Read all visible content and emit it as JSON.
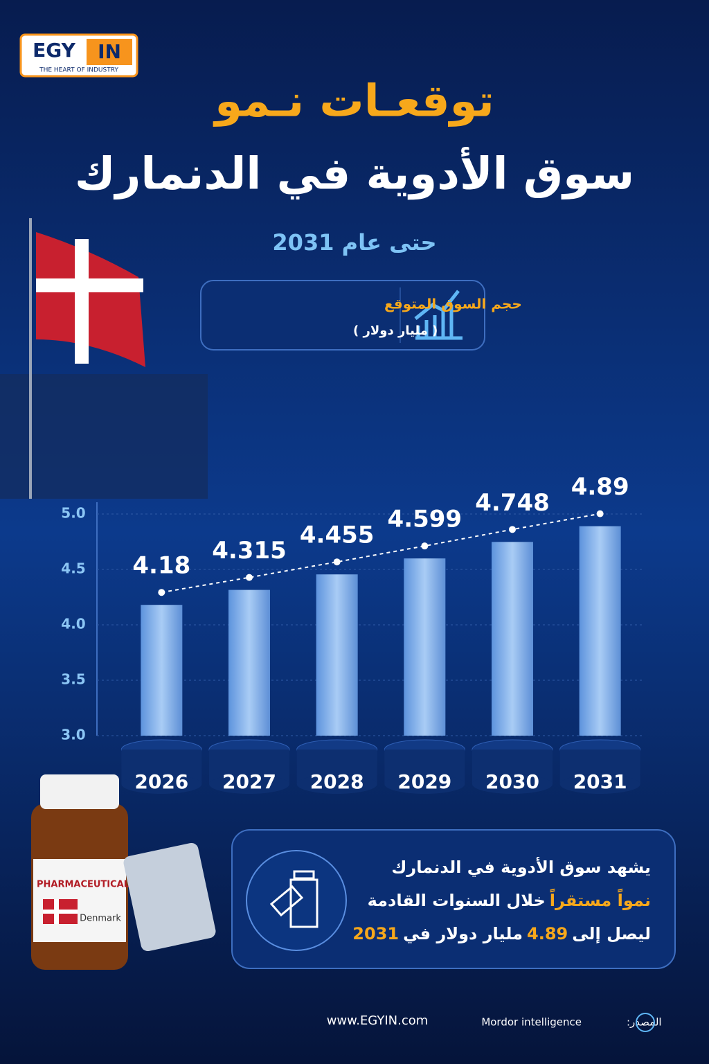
{
  "logo": {
    "left": "EGY",
    "right": "IN",
    "tagline": "THE HEART OF INDUSTRY"
  },
  "header": {
    "title_line1": "توقعـات نـمو",
    "title_line2": "سوق الأدوية في الدنمارك",
    "subtitle": "حتى عام 2031"
  },
  "legend_box": {
    "title": "حجم السوق المتوقع",
    "unit": "( مليار دولار )"
  },
  "chart_data": {
    "type": "bar",
    "categories": [
      "2026",
      "2027",
      "2028",
      "2029",
      "2030",
      "2031"
    ],
    "values": [
      4.18,
      4.315,
      4.455,
      4.599,
      4.748,
      4.89
    ],
    "color": "#7fb2ef",
    "ylim": [
      3.0,
      5.0
    ],
    "yticks": [
      {
        "value": 3.0,
        "label": "3.0"
      },
      {
        "value": 3.5,
        "label": "3.5"
      },
      {
        "value": 4.0,
        "label": "4.0"
      },
      {
        "value": 4.5,
        "label": "4.5"
      },
      {
        "value": 5.0,
        "label": "5.0"
      }
    ],
    "grid": true,
    "trend_line": true
  },
  "bottle": {
    "label": "PHARMACEUTICAL",
    "country": "Denmark"
  },
  "summary": {
    "line1": [
      "يشهد سوق الأدوية في الدنمارك"
    ],
    "line2": [
      "نمواً مستقراً",
      "خلال السنوات القادمة"
    ],
    "line3": [
      "ليصل إلى",
      "4.89",
      "مليار دولار في",
      "2031"
    ]
  },
  "footer": {
    "website": "www.EGYIN.com",
    "source_label": "المصدر:",
    "source": "Mordor intelligence"
  }
}
